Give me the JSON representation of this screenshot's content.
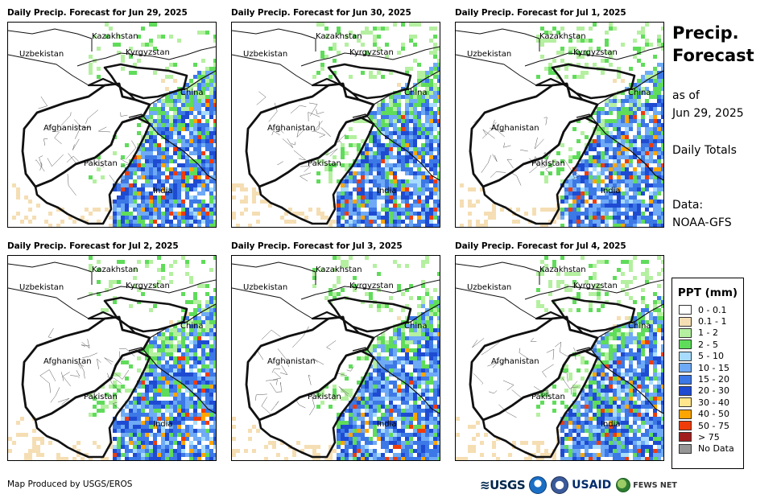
{
  "panels": [
    {
      "title": "Daily Precip. Forecast for Jun 29, 2025",
      "seed": 1
    },
    {
      "title": "Daily Precip. Forecast for Jun 30, 2025",
      "seed": 2
    },
    {
      "title": "Daily Precip. Forecast for Jul 1, 2025",
      "seed": 3
    },
    {
      "title": "Daily Precip. Forecast for Jul 2, 2025",
      "seed": 4
    },
    {
      "title": "Daily Precip. Forecast for Jul 3, 2025",
      "seed": 5
    },
    {
      "title": "Daily Precip. Forecast for Jul 4, 2025",
      "seed": 6
    }
  ],
  "countries": {
    "kazakhstan": "Kazakhstan",
    "uzbekistan": "Uzbekistan",
    "kyrgyzstan": "Kyrgyzstan",
    "china": "China",
    "afghanistan": "Afghanistan",
    "pakistan": "Pakistan",
    "india": "India"
  },
  "side": {
    "title_line1": "Precip.",
    "title_line2": "Forecast",
    "as_of_label": "as of",
    "as_of_date": "Jun 29, 2025",
    "daily_totals": "Daily Totals",
    "data_label": "Data:",
    "data_source": "NOAA-GFS"
  },
  "legend": {
    "title": "PPT (mm)",
    "items": [
      {
        "label": "0 - 0.1",
        "color": "#ffffff"
      },
      {
        "label": "0.1 - 1",
        "color": "#f5deb3"
      },
      {
        "label": "1 - 2",
        "color": "#b4f0a0"
      },
      {
        "label": "2 - 5",
        "color": "#5fdc5a"
      },
      {
        "label": "5 - 10",
        "color": "#a8dcff"
      },
      {
        "label": "10 - 15",
        "color": "#6eaaf5"
      },
      {
        "label": "15 - 20",
        "color": "#3c78e6"
      },
      {
        "label": "20 - 30",
        "color": "#1e4bd2"
      },
      {
        "label": "30 - 40",
        "color": "#ffe68c"
      },
      {
        "label": "40 - 50",
        "color": "#ffa500"
      },
      {
        "label": "50 - 75",
        "color": "#f03c0a"
      },
      {
        "label": "> 75",
        "color": "#a01e1e"
      },
      {
        "label": "No Data",
        "color": "#969696"
      }
    ]
  },
  "footer": {
    "credit": "Map Produced by USGS/EROS",
    "logo_usgs": "≋USGS",
    "logo_usaid": "USAID",
    "logo_fews": "FEWS NET"
  }
}
